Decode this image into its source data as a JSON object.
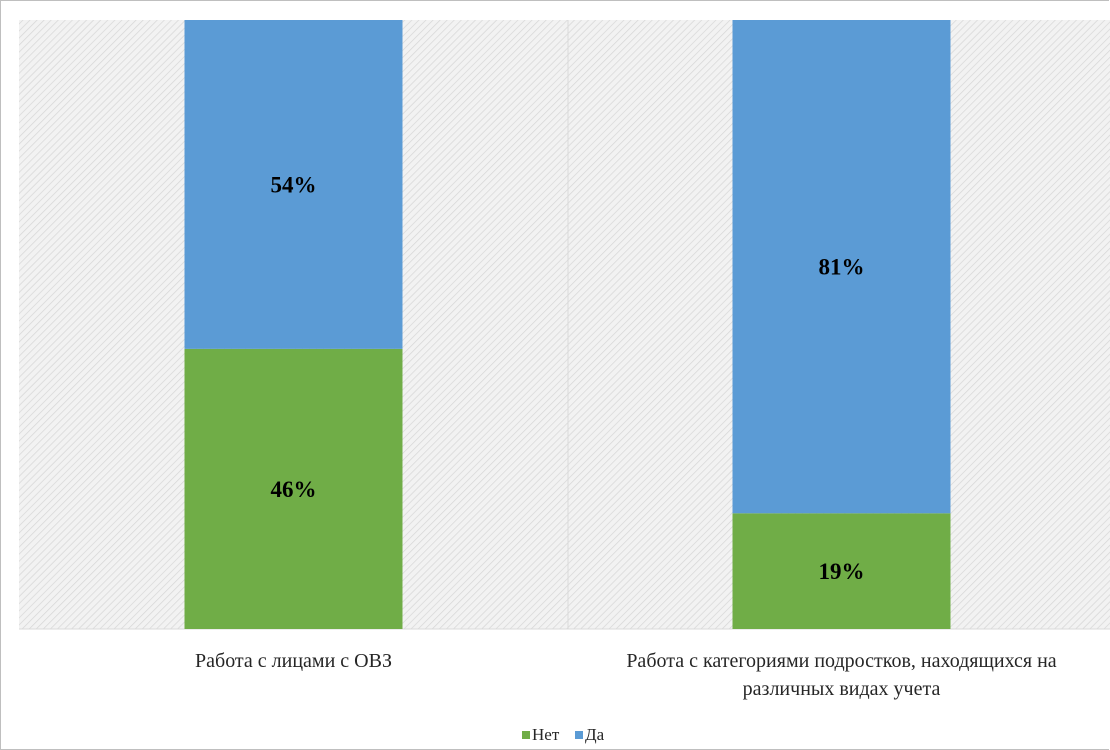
{
  "chart_data": {
    "type": "bar",
    "stacked": true,
    "categories": [
      "Работа с лицами с ОВЗ",
      "Работа с категориями подростков, находящихся на различных видах учета"
    ],
    "category_label_lines": [
      [
        "Работа с лицами с ОВЗ"
      ],
      [
        "Работа с категориями подростков, находящихся  на",
        "различных видах учета"
      ]
    ],
    "series": [
      {
        "name": "Нет",
        "values": [
          46,
          19
        ],
        "labels": [
          "46%",
          "19%"
        ],
        "color": "#70ad47"
      },
      {
        "name": "Да",
        "values": [
          54,
          81
        ],
        "labels": [
          "54%",
          "81%"
        ],
        "color": "#5b9bd5"
      }
    ],
    "ylim": [
      0,
      100
    ],
    "title": "",
    "xlabel": "",
    "ylabel": "",
    "legend_position": "bottom",
    "grid": false,
    "background": "hatched-light-gray",
    "colors": {
      "hatch_bg": "#f2f2f2",
      "hatch_line": "#d9d9d9",
      "axis": "#d9d9d9",
      "divider": "#d9d9d9"
    }
  }
}
